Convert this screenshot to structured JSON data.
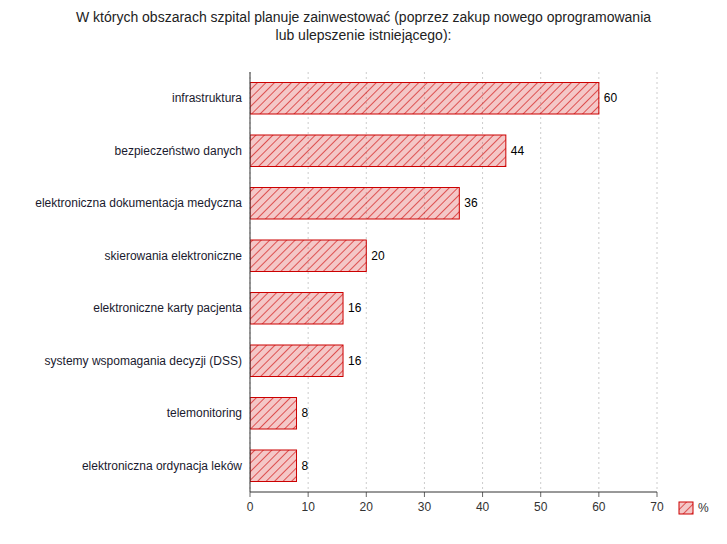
{
  "chart_data": {
    "type": "bar",
    "orientation": "horizontal",
    "title": "W których obszarach szpital planuje zainwestować (poprzez zakup nowego oprogramowania\nlub ulepszenie istniejącego):",
    "categories": [
      "elektroniczna ordynacja leków",
      "telemonitoring",
      "systemy wspomagania decyzji (DSS)",
      "elektroniczne karty pacjenta",
      "skierowania elektroniczne",
      "elektroniczna dokumentacja medyczna",
      "bezpieczeństwo danych",
      "infrastruktura"
    ],
    "series": [
      {
        "name": "%",
        "color": "#cc0000",
        "values": [
          8,
          8,
          16,
          16,
          20,
          36,
          44,
          60
        ]
      }
    ],
    "xlim": [
      0,
      70
    ],
    "xticks": [
      0,
      10,
      20,
      30,
      40,
      50,
      60,
      70
    ],
    "grid": true,
    "data_labels": true,
    "legend": "bottom-right"
  }
}
